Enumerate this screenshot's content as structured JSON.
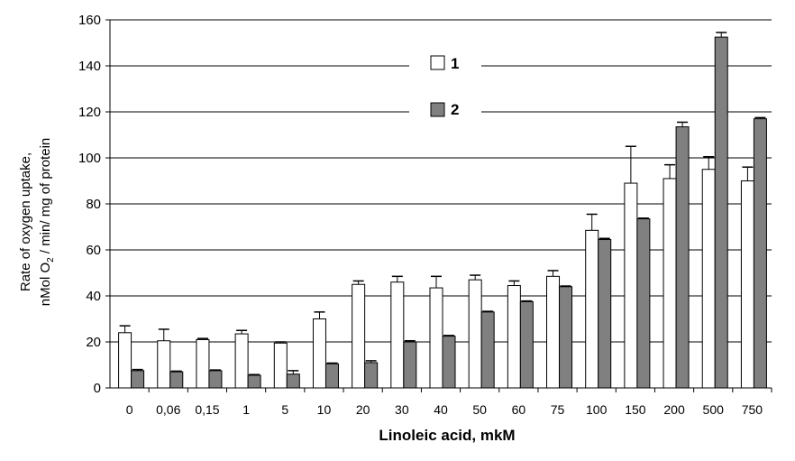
{
  "chart_data": {
    "type": "bar",
    "categories": [
      "0",
      "0,06",
      "0,15",
      "1",
      "5",
      "10",
      "20",
      "30",
      "40",
      "50",
      "60",
      "75",
      "100",
      "150",
      "200",
      "500",
      "750"
    ],
    "series": [
      {
        "name": "1",
        "color": "#ffffff",
        "values": [
          24,
          20.5,
          21,
          23.5,
          19.5,
          30,
          45,
          46,
          43.5,
          47,
          44.5,
          48.5,
          68.5,
          89,
          91,
          95,
          90
        ],
        "errors": [
          3,
          5,
          0.5,
          1.5,
          0.5,
          3,
          1.5,
          2.5,
          5,
          2,
          2,
          2.5,
          7,
          16,
          6,
          5.5,
          6
        ]
      },
      {
        "name": "2",
        "color": "#808080",
        "values": [
          7.5,
          7,
          7.5,
          5.5,
          6,
          10.5,
          11,
          20,
          22.5,
          33,
          37.5,
          44,
          64.5,
          73.5,
          113.5,
          152.5,
          117
        ],
        "errors": [
          0.5,
          0.3,
          0.3,
          0.3,
          1.5,
          0.3,
          0.8,
          0.5,
          0.3,
          0.3,
          0.3,
          0.3,
          0.5,
          0.3,
          2,
          2,
          0.5
        ]
      }
    ],
    "xlabel": "Linoleic acid, mkM",
    "ylabel_line1": "Rate of oxygen uptake,",
    "ylabel_line2_pre": "nMol O",
    "ylabel_line2_sub": "2",
    "ylabel_line2_post": " / min/ mg of protein",
    "ylim": [
      0,
      160
    ],
    "yticks": [
      "0",
      "20",
      "40",
      "60",
      "80",
      "100",
      "120",
      "140",
      "160"
    ],
    "grid": true,
    "legend_position": "top-center"
  }
}
